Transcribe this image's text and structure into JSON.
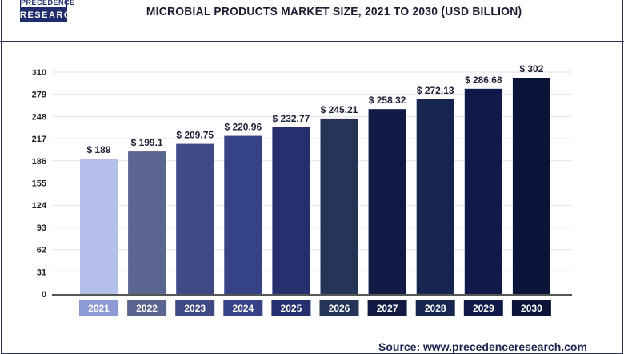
{
  "logo": {
    "line1": "PRECEDENCE",
    "line2": "RESEARCH"
  },
  "source": "Source: www.precedenceresearch.com",
  "chart_data": {
    "type": "bar",
    "title": "MICROBIAL PRODUCTS MARKET SIZE, 2021 TO 2030 (USD BILLION)",
    "xlabel": "",
    "ylabel": "",
    "ylim": [
      0,
      310
    ],
    "yticks": [
      0,
      31,
      62,
      93,
      124,
      155,
      186,
      217,
      248,
      279,
      310
    ],
    "grid": true,
    "categories": [
      "2021",
      "2022",
      "2023",
      "2024",
      "2025",
      "2026",
      "2027",
      "2028",
      "2029",
      "2030"
    ],
    "values": [
      189,
      199.1,
      209.75,
      220.96,
      232.77,
      245.21,
      258.32,
      272.13,
      286.68,
      302
    ],
    "data_labels": [
      "$ 189",
      "$ 199.1",
      "$ 209.75",
      "$ 220.96",
      "$ 232.77",
      "$ 245.21",
      "$ 258.32",
      "$ 272.13",
      "$ 286.68",
      "$ 302"
    ],
    "bar_colors": [
      "#b4c0e8",
      "#5a6590",
      "#3f4a85",
      "#354286",
      "#262f6e",
      "#233457",
      "#121a45",
      "#172650",
      "#10194a",
      "#0b1438"
    ],
    "label_box_colors": [
      "#8c9bd4",
      "#5a6590",
      "#3f4a85",
      "#354286",
      "#262f6e",
      "#233457",
      "#121a45",
      "#172650",
      "#10194a",
      "#0b1438"
    ]
  }
}
